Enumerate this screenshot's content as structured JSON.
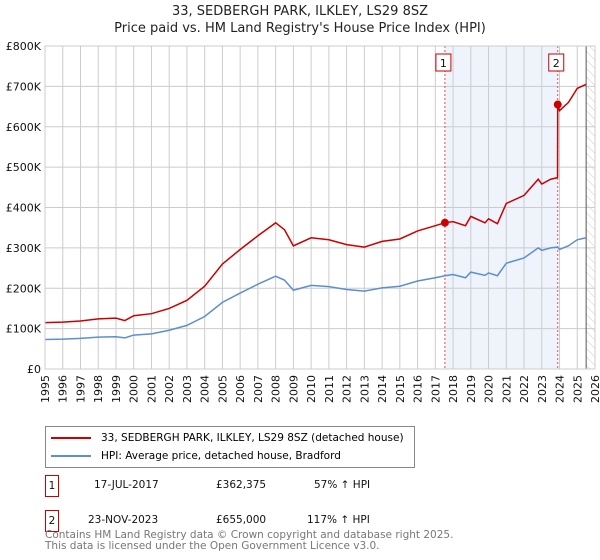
{
  "title": "33, SEDBERGH PARK, ILKLEY, LS29 8SZ",
  "subtitle": "Price paid vs. HM Land Registry's House Price Index (HPI)",
  "chart_data": {
    "type": "line",
    "ylim": [
      0,
      800000
    ],
    "xlim": [
      1995,
      2026
    ],
    "yticks": [
      0,
      100000,
      200000,
      300000,
      400000,
      500000,
      600000,
      700000,
      800000
    ],
    "ytick_labels": [
      "£0",
      "£100K",
      "£200K",
      "£300K",
      "£400K",
      "£500K",
      "£600K",
      "£700K",
      "£800K"
    ],
    "xticks": [
      "1995",
      "1996",
      "1997",
      "1998",
      "1999",
      "2000",
      "2001",
      "2002",
      "2003",
      "2004",
      "2005",
      "2006",
      "2007",
      "2008",
      "2009",
      "2010",
      "2011",
      "2012",
      "2013",
      "2014",
      "2015",
      "2016",
      "2017",
      "2018",
      "2019",
      "2020",
      "2021",
      "2022",
      "2023",
      "2024",
      "2025",
      "2026"
    ],
    "series": [
      {
        "name": "33, SEDBERGH PARK, ILKLEY, LS29 8SZ (detached house)",
        "color": "#cc0000",
        "x": [
          1995,
          1996,
          1997,
          1998,
          1999,
          1999.5,
          2000,
          2001,
          2002,
          2003,
          2004,
          2005,
          2006,
          2007,
          2008,
          2008.5,
          2009,
          2010,
          2011,
          2012,
          2013,
          2014,
          2015,
          2016,
          2017,
          2017.54,
          2018,
          2018.7,
          2019,
          2019.8,
          2020,
          2020.5,
          2021,
          2022,
          2022.8,
          2023,
          2023.5,
          2023.89,
          2023.9,
          2024,
          2024.5,
          2025,
          2025.5
        ],
        "y": [
          115000,
          116000,
          119000,
          124000,
          126000,
          120000,
          132000,
          137000,
          150000,
          170000,
          205000,
          260000,
          296000,
          330000,
          362000,
          345000,
          305000,
          325000,
          320000,
          308000,
          302000,
          316000,
          322000,
          342000,
          355000,
          362375,
          365000,
          355000,
          378000,
          362000,
          372000,
          360000,
          410000,
          430000,
          470000,
          458000,
          470000,
          474000,
          655000,
          640000,
          660000,
          695000,
          705000
        ]
      },
      {
        "name": "HPI: Average price, detached house, Bradford",
        "color": "#5b8fd0",
        "x": [
          1995,
          1996,
          1997,
          1998,
          1999,
          1999.5,
          2000,
          2001,
          2002,
          2003,
          2004,
          2005,
          2006,
          2007,
          2008,
          2008.5,
          2009,
          2010,
          2011,
          2012,
          2013,
          2014,
          2015,
          2016,
          2017,
          2017.54,
          2018,
          2018.7,
          2019,
          2019.8,
          2020,
          2020.5,
          2021,
          2022,
          2022.8,
          2023,
          2023.5,
          2023.9,
          2024,
          2024.5,
          2025,
          2025.5
        ],
        "y": [
          73000,
          74000,
          76000,
          79000,
          80000,
          77000,
          84000,
          87000,
          96000,
          108000,
          130000,
          165000,
          188000,
          210000,
          230000,
          220000,
          195000,
          207000,
          204000,
          197000,
          193000,
          201000,
          205000,
          218000,
          226000,
          231000,
          234000,
          226000,
          240000,
          232000,
          238000,
          231000,
          262000,
          275000,
          300000,
          294000,
          300000,
          302000,
          296000,
          305000,
          320000,
          325000
        ]
      }
    ],
    "annotations": [
      {
        "label": "1",
        "x": 2017.54,
        "y": 362375
      },
      {
        "label": "2",
        "x": 2023.9,
        "y": 655000
      }
    ],
    "shaded_range": [
      2017.54,
      2023.9
    ],
    "hatched_from": 2025.5,
    "grid": true
  },
  "legend": {
    "items": [
      "33, SEDBERGH PARK, ILKLEY, LS29 8SZ (detached house)",
      "HPI: Average price, detached house, Bradford"
    ]
  },
  "sales": [
    {
      "num": "1",
      "date": "17-JUL-2017",
      "price": "£362,375",
      "hpi": "57% ↑ HPI"
    },
    {
      "num": "2",
      "date": "23-NOV-2023",
      "price": "£655,000",
      "hpi": "117% ↑ HPI"
    }
  ],
  "footer": {
    "line1": "Contains HM Land Registry data © Crown copyright and database right 2025.",
    "line2": "This data is licensed under the Open Government Licence v3.0."
  }
}
